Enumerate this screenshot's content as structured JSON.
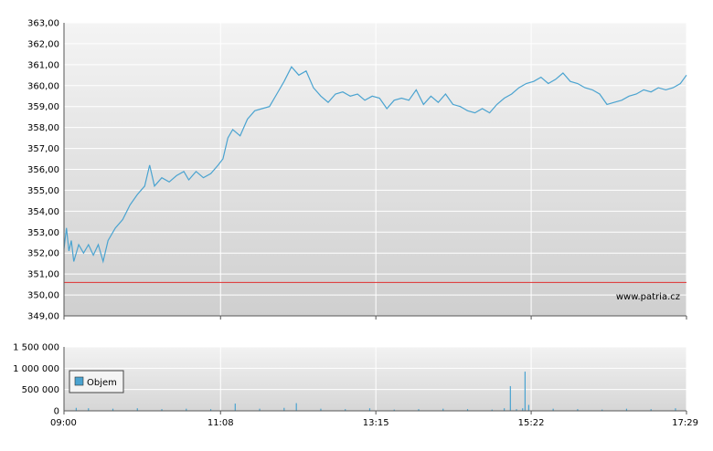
{
  "chart_data": [
    {
      "type": "line",
      "title": "",
      "xlabel": "",
      "ylabel": "",
      "ylim": [
        349.0,
        363.0
      ],
      "y_ticks": [
        "363,00",
        "362,00",
        "361,00",
        "360,00",
        "359,00",
        "358,00",
        "357,00",
        "356,00",
        "355,00",
        "354,00",
        "353,00",
        "352,00",
        "351,00",
        "350,00",
        "349,00"
      ],
      "x_ticks": [
        "09:00",
        "11:08",
        "13:15",
        "15:22",
        "17:29"
      ],
      "xlim": [
        "09:00",
        "17:29"
      ],
      "grid": true,
      "reference_line": {
        "value": 350.6,
        "color": "#e03030"
      },
      "watermark": "www.patria.cz",
      "series": [
        {
          "color": "#4aa3d0",
          "points": [
            [
              "09:00",
              352.2
            ],
            [
              "09:02",
              353.2
            ],
            [
              "09:04",
              352.1
            ],
            [
              "09:06",
              352.6
            ],
            [
              "09:08",
              351.6
            ],
            [
              "09:12",
              352.4
            ],
            [
              "09:16",
              352.0
            ],
            [
              "09:20",
              352.4
            ],
            [
              "09:24",
              351.9
            ],
            [
              "09:28",
              352.4
            ],
            [
              "09:32",
              351.6
            ],
            [
              "09:36",
              352.6
            ],
            [
              "09:42",
              353.2
            ],
            [
              "09:48",
              353.6
            ],
            [
              "09:54",
              354.3
            ],
            [
              "10:00",
              354.8
            ],
            [
              "10:06",
              355.2
            ],
            [
              "10:10",
              356.2
            ],
            [
              "10:14",
              355.2
            ],
            [
              "10:20",
              355.6
            ],
            [
              "10:26",
              355.4
            ],
            [
              "10:32",
              355.7
            ],
            [
              "10:38",
              355.9
            ],
            [
              "10:42",
              355.5
            ],
            [
              "10:48",
              355.9
            ],
            [
              "10:54",
              355.6
            ],
            [
              "11:00",
              355.8
            ],
            [
              "11:06",
              356.2
            ],
            [
              "11:10",
              356.5
            ],
            [
              "11:14",
              357.5
            ],
            [
              "11:18",
              357.9
            ],
            [
              "11:24",
              357.6
            ],
            [
              "11:30",
              358.4
            ],
            [
              "11:36",
              358.8
            ],
            [
              "11:42",
              358.9
            ],
            [
              "11:48",
              359.0
            ],
            [
              "11:54",
              359.6
            ],
            [
              "12:00",
              360.2
            ],
            [
              "12:06",
              360.9
            ],
            [
              "12:12",
              360.5
            ],
            [
              "12:18",
              360.7
            ],
            [
              "12:24",
              359.9
            ],
            [
              "12:30",
              359.5
            ],
            [
              "12:36",
              359.2
            ],
            [
              "12:42",
              359.6
            ],
            [
              "12:48",
              359.7
            ],
            [
              "12:54",
              359.5
            ],
            [
              "13:00",
              359.6
            ],
            [
              "13:06",
              359.3
            ],
            [
              "13:12",
              359.5
            ],
            [
              "13:18",
              359.4
            ],
            [
              "13:24",
              358.9
            ],
            [
              "13:30",
              359.3
            ],
            [
              "13:36",
              359.4
            ],
            [
              "13:42",
              359.3
            ],
            [
              "13:48",
              359.8
            ],
            [
              "13:54",
              359.1
            ],
            [
              "14:00",
              359.5
            ],
            [
              "14:06",
              359.2
            ],
            [
              "14:12",
              359.6
            ],
            [
              "14:18",
              359.1
            ],
            [
              "14:24",
              359.0
            ],
            [
              "14:30",
              358.8
            ],
            [
              "14:36",
              358.7
            ],
            [
              "14:42",
              358.9
            ],
            [
              "14:48",
              358.7
            ],
            [
              "14:54",
              359.1
            ],
            [
              "15:00",
              359.4
            ],
            [
              "15:06",
              359.6
            ],
            [
              "15:12",
              359.9
            ],
            [
              "15:18",
              360.1
            ],
            [
              "15:24",
              360.2
            ],
            [
              "15:30",
              360.4
            ],
            [
              "15:36",
              360.1
            ],
            [
              "15:42",
              360.3
            ],
            [
              "15:48",
              360.6
            ],
            [
              "15:54",
              360.2
            ],
            [
              "16:00",
              360.1
            ],
            [
              "16:06",
              359.9
            ],
            [
              "16:12",
              359.8
            ],
            [
              "16:18",
              359.6
            ],
            [
              "16:24",
              359.1
            ],
            [
              "16:30",
              359.2
            ],
            [
              "16:36",
              359.3
            ],
            [
              "16:42",
              359.5
            ],
            [
              "16:48",
              359.6
            ],
            [
              "16:54",
              359.8
            ],
            [
              "17:00",
              359.7
            ],
            [
              "17:06",
              359.9
            ],
            [
              "17:12",
              359.8
            ],
            [
              "17:18",
              359.9
            ],
            [
              "17:24",
              360.1
            ],
            [
              "17:29",
              360.5
            ]
          ]
        }
      ]
    },
    {
      "type": "bar",
      "title": "",
      "ylim": [
        0,
        1500000
      ],
      "y_ticks": [
        "1 500 000",
        "1 000 000",
        "500 000",
        "0"
      ],
      "x_ticks": [
        "09:00",
        "11:08",
        "13:15",
        "15:22",
        "17:29"
      ],
      "xlim": [
        "09:00",
        "17:29"
      ],
      "grid": true,
      "legend": {
        "position": "left",
        "entries": [
          {
            "name": "Objem",
            "color": "#4aa3d0"
          }
        ]
      },
      "series": [
        {
          "name": "Objem",
          "color": "#4aa3d0",
          "points": [
            [
              "09:10",
              70000
            ],
            [
              "09:20",
              60000
            ],
            [
              "09:40",
              50000
            ],
            [
              "10:00",
              60000
            ],
            [
              "10:20",
              40000
            ],
            [
              "10:40",
              50000
            ],
            [
              "11:00",
              40000
            ],
            [
              "11:20",
              170000
            ],
            [
              "11:40",
              50000
            ],
            [
              "12:00",
              70000
            ],
            [
              "12:10",
              180000
            ],
            [
              "12:30",
              50000
            ],
            [
              "12:50",
              40000
            ],
            [
              "13:10",
              60000
            ],
            [
              "13:30",
              30000
            ],
            [
              "13:50",
              40000
            ],
            [
              "14:10",
              50000
            ],
            [
              "14:30",
              40000
            ],
            [
              "14:50",
              30000
            ],
            [
              "15:00",
              60000
            ],
            [
              "15:05",
              580000
            ],
            [
              "15:10",
              40000
            ],
            [
              "15:15",
              60000
            ],
            [
              "15:17",
              920000
            ],
            [
              "15:20",
              140000
            ],
            [
              "15:40",
              50000
            ],
            [
              "16:00",
              40000
            ],
            [
              "16:20",
              30000
            ],
            [
              "16:40",
              50000
            ],
            [
              "17:00",
              40000
            ],
            [
              "17:20",
              60000
            ]
          ]
        }
      ]
    }
  ]
}
